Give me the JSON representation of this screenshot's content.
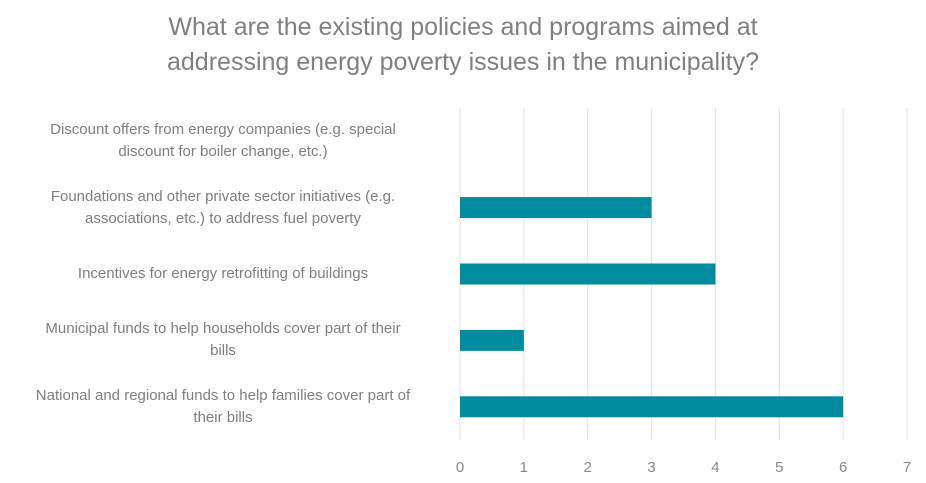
{
  "chart_data": {
    "type": "bar",
    "orientation": "horizontal",
    "title": "What are the existing policies and programs aimed at addressing energy poverty issues in the municipality?",
    "title_lines": [
      "What are the existing policies and programs aimed at",
      "addressing energy poverty issues in the municipality?"
    ],
    "categories": [
      "Discount offers from energy companies (e.g. special discount for boiler change, etc.)",
      "Foundations and other private sector initiatives (e.g. associations, etc.) to address fuel poverty",
      "Incentives for energy retrofitting of buildings",
      "Municipal funds to help households cover part of their bills",
      "National and regional funds to help families cover part of their bills"
    ],
    "category_lines": [
      [
        "Discount offers from energy companies (e.g. special",
        "discount for boiler change, etc.)"
      ],
      [
        "Foundations and other private sector initiatives (e.g.",
        "associations, etc.) to address fuel poverty"
      ],
      [
        "Incentives for energy retrofitting of buildings"
      ],
      [
        "Municipal funds to help households cover part of their",
        "bills"
      ],
      [
        "National and regional funds to help families cover part of",
        "their bills"
      ]
    ],
    "values": [
      0,
      3,
      4,
      1,
      6
    ],
    "xlim": [
      0,
      7
    ],
    "xticks": [
      "0",
      "1",
      "2",
      "3",
      "4",
      "5",
      "6",
      "7"
    ],
    "xlabel": "",
    "ylabel": "",
    "grid": "vertical",
    "legend": "none",
    "bar_color": "#008b9e",
    "grid_color": "#e6e6e6"
  }
}
